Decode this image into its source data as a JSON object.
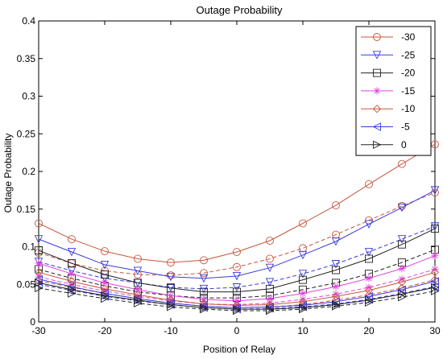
{
  "chart_data": {
    "type": "line",
    "title": "Outage Probability",
    "xlabel": "Position of Relay",
    "ylabel": "Outage Probability",
    "xlim": [
      -30,
      30
    ],
    "ylim": [
      0,
      0.4
    ],
    "xticks": [
      -30,
      -20,
      -10,
      0,
      10,
      20,
      30
    ],
    "xtick_labels": [
      "-30",
      "-20",
      "-10",
      "0",
      "10",
      "20",
      "30"
    ],
    "yticks": [
      0,
      0.05,
      0.1,
      0.15,
      0.2,
      0.25,
      0.3,
      0.35,
      0.4
    ],
    "ytick_labels": [
      "0",
      "0.05",
      "0.1",
      "0.15",
      "0.2",
      "0.25",
      "0.3",
      "0.35",
      "0.4"
    ],
    "grid": false,
    "legend_position": "top-right",
    "x": [
      -30,
      -25,
      -20,
      -15,
      -10,
      -5,
      0,
      5,
      10,
      15,
      20,
      25,
      30
    ],
    "series": [
      {
        "name": "-30",
        "color": "#c8553d",
        "marker": "circle",
        "dash": "solid",
        "values": [
          0.131,
          0.11,
          0.094,
          0.084,
          0.079,
          0.082,
          0.093,
          0.108,
          0.131,
          0.155,
          0.183,
          0.21,
          0.236
        ]
      },
      {
        "name": "",
        "color": "#c8553d",
        "marker": "circle",
        "dash": "dashed",
        "values": [
          0.092,
          0.078,
          0.068,
          0.063,
          0.062,
          0.065,
          0.073,
          0.084,
          0.098,
          0.116,
          0.135,
          0.154,
          0.172
        ]
      },
      {
        "name": "-25",
        "color": "#3a3ae0",
        "marker": "triangle-down",
        "dash": "solid",
        "values": [
          0.11,
          0.093,
          0.076,
          0.068,
          0.06,
          0.058,
          0.061,
          0.072,
          0.089,
          0.107,
          0.13,
          0.152,
          0.175
        ]
      },
      {
        "name": "",
        "color": "#3a3ae0",
        "marker": "triangle-down",
        "dash": "dashed",
        "values": [
          0.08,
          0.068,
          0.058,
          0.052,
          0.046,
          0.044,
          0.046,
          0.053,
          0.064,
          0.077,
          0.093,
          0.11,
          0.127
        ]
      },
      {
        "name": "-20",
        "color": "#222222",
        "marker": "square",
        "dash": "solid",
        "values": [
          0.095,
          0.078,
          0.063,
          0.052,
          0.045,
          0.04,
          0.04,
          0.044,
          0.056,
          0.069,
          0.084,
          0.103,
          0.124
        ]
      },
      {
        "name": "",
        "color": "#222222",
        "marker": "square",
        "dash": "dashed",
        "values": [
          0.07,
          0.058,
          0.048,
          0.04,
          0.035,
          0.032,
          0.032,
          0.035,
          0.043,
          0.052,
          0.064,
          0.079,
          0.096
        ]
      },
      {
        "name": "-15",
        "color": "#e040e0",
        "marker": "star",
        "dash": "solid",
        "values": [
          0.078,
          0.064,
          0.052,
          0.043,
          0.035,
          0.03,
          0.028,
          0.031,
          0.038,
          0.047,
          0.058,
          0.071,
          0.088
        ]
      },
      {
        "name": "",
        "color": "#e040e0",
        "marker": "star",
        "dash": "dashed",
        "values": [
          0.06,
          0.05,
          0.041,
          0.034,
          0.028,
          0.024,
          0.023,
          0.025,
          0.03,
          0.037,
          0.046,
          0.057,
          0.07
        ]
      },
      {
        "name": "-10",
        "color": "#c8553d",
        "marker": "diamond",
        "dash": "solid",
        "values": [
          0.066,
          0.054,
          0.044,
          0.036,
          0.029,
          0.024,
          0.022,
          0.023,
          0.027,
          0.034,
          0.042,
          0.053,
          0.066
        ]
      },
      {
        "name": "",
        "color": "#c8553d",
        "marker": "diamond",
        "dash": "dashed",
        "values": [
          0.055,
          0.046,
          0.038,
          0.031,
          0.025,
          0.021,
          0.019,
          0.02,
          0.023,
          0.029,
          0.036,
          0.045,
          0.056
        ]
      },
      {
        "name": "-5",
        "color": "#3a3ae0",
        "marker": "triangle-left",
        "dash": "solid",
        "values": [
          0.057,
          0.047,
          0.038,
          0.031,
          0.025,
          0.021,
          0.019,
          0.02,
          0.022,
          0.027,
          0.034,
          0.043,
          0.054
        ]
      },
      {
        "name": "",
        "color": "#3a3ae0",
        "marker": "triangle-left",
        "dash": "dashed",
        "values": [
          0.05,
          0.042,
          0.034,
          0.028,
          0.023,
          0.019,
          0.017,
          0.018,
          0.02,
          0.024,
          0.03,
          0.038,
          0.047
        ]
      },
      {
        "name": "0",
        "color": "#222222",
        "marker": "triangle-right",
        "dash": "solid",
        "values": [
          0.052,
          0.043,
          0.035,
          0.029,
          0.023,
          0.019,
          0.017,
          0.017,
          0.019,
          0.023,
          0.029,
          0.037,
          0.046
        ]
      },
      {
        "name": "",
        "color": "#222222",
        "marker": "triangle-right",
        "dash": "dashed",
        "values": [
          0.045,
          0.038,
          0.031,
          0.025,
          0.02,
          0.017,
          0.015,
          0.015,
          0.017,
          0.021,
          0.026,
          0.033,
          0.041
        ]
      }
    ]
  }
}
